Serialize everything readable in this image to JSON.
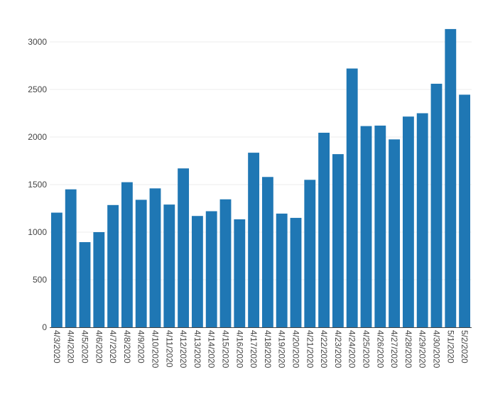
{
  "chart_data": {
    "type": "bar",
    "title": "",
    "xlabel": "",
    "ylabel": "",
    "ylim": [
      0,
      3200
    ],
    "yticks": [
      0,
      500,
      1000,
      1500,
      2000,
      2500,
      3000
    ],
    "grid": true,
    "bar_color": "#1f77b4",
    "categories": [
      "4/3/2020",
      "4/4/2020",
      "4/5/2020",
      "4/6/2020",
      "4/7/2020",
      "4/8/2020",
      "4/9/2020",
      "4/10/2020",
      "4/11/2020",
      "4/12/2020",
      "4/13/2020",
      "4/14/2020",
      "4/15/2020",
      "4/16/2020",
      "4/17/2020",
      "4/18/2020",
      "4/19/2020",
      "4/20/2020",
      "4/21/2020",
      "4/22/2020",
      "4/23/2020",
      "4/24/2020",
      "4/25/2020",
      "4/26/2020",
      "4/27/2020",
      "4/28/2020",
      "4/29/2020",
      "4/30/2020",
      "5/1/2020",
      "5/2/2020"
    ],
    "values": [
      1205,
      1450,
      895,
      1000,
      1285,
      1525,
      1340,
      1460,
      1290,
      1670,
      1170,
      1220,
      1345,
      1135,
      1835,
      1580,
      1195,
      1150,
      1550,
      2045,
      1820,
      2720,
      2115,
      2120,
      1975,
      2215,
      2250,
      2560,
      3135,
      2445
    ]
  }
}
